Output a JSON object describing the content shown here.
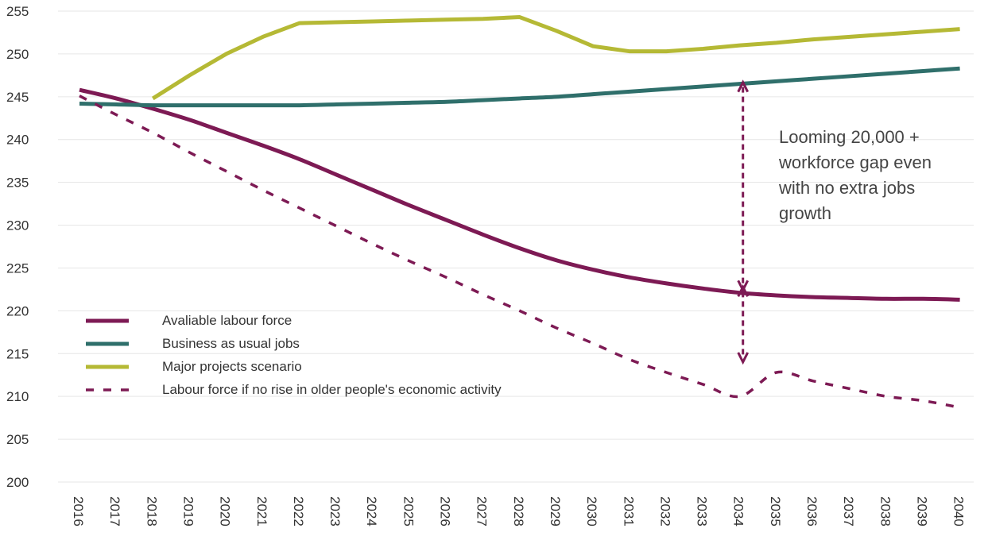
{
  "chart_data": {
    "type": "line",
    "title": "",
    "xlabel": "",
    "ylabel": "",
    "ylim": [
      200,
      255
    ],
    "yticks": [
      200,
      205,
      210,
      215,
      220,
      225,
      230,
      235,
      240,
      245,
      250,
      255
    ],
    "x": [
      2016,
      2017,
      2018,
      2019,
      2020,
      2021,
      2022,
      2023,
      2024,
      2025,
      2026,
      2027,
      2028,
      2029,
      2030,
      2031,
      2032,
      2033,
      2034,
      2035,
      2036,
      2037,
      2038,
      2039,
      2040
    ],
    "grid": true,
    "legend_position": "bottom-left",
    "series": [
      {
        "name": "Avaliable labour force",
        "color": "#7d1a54",
        "style": "solid",
        "values": [
          245.8,
          244.8,
          243.6,
          242.3,
          240.8,
          239.3,
          237.7,
          235.9,
          234.1,
          232.3,
          230.6,
          228.9,
          227.3,
          225.9,
          224.8,
          223.9,
          223.2,
          222.6,
          222.1,
          221.8,
          221.6,
          221.5,
          221.4,
          221.4,
          221.3
        ]
      },
      {
        "name": "Business as usual jobs",
        "color": "#2f6f6b",
        "style": "solid",
        "values": [
          244.2,
          244.1,
          244.0,
          244.0,
          244.0,
          244.0,
          244.0,
          244.1,
          244.2,
          244.3,
          244.4,
          244.6,
          244.8,
          245.0,
          245.3,
          245.6,
          245.9,
          246.2,
          246.5,
          246.8,
          247.1,
          247.4,
          247.7,
          248.0,
          248.3
        ]
      },
      {
        "name": "Major projects scenario",
        "color": "#b5b935",
        "style": "solid",
        "values": [
          null,
          null,
          244.8,
          247.5,
          250.0,
          252.0,
          253.6,
          253.7,
          253.8,
          253.9,
          254.0,
          254.1,
          254.3,
          252.7,
          250.9,
          250.3,
          250.3,
          250.6,
          251.0,
          251.3,
          251.7,
          252.0,
          252.3,
          252.6,
          252.9
        ]
      },
      {
        "name": "Labour force if no rise in older people's economic activity",
        "color": "#7d1a54",
        "style": "dashed",
        "values": [
          245.1,
          242.9,
          240.8,
          238.5,
          236.3,
          234.1,
          232.0,
          229.9,
          227.8,
          225.8,
          223.9,
          221.9,
          220.0,
          218.0,
          216.2,
          214.3,
          212.8,
          211.4,
          210.0,
          212.8,
          211.8,
          210.9,
          210.0,
          209.5,
          208.7
        ]
      }
    ],
    "annotations": [
      {
        "text_lines": [
          "Looming 20,000 +",
          "workforce gap even",
          "with no extra jobs",
          "growth"
        ],
        "arrow_x": 2034,
        "arrow_from": 222.6,
        "arrow_to": 246.5
      },
      {
        "arrow_x": 2034,
        "arrow_from": 214.2,
        "arrow_to": 222.6
      }
    ]
  }
}
